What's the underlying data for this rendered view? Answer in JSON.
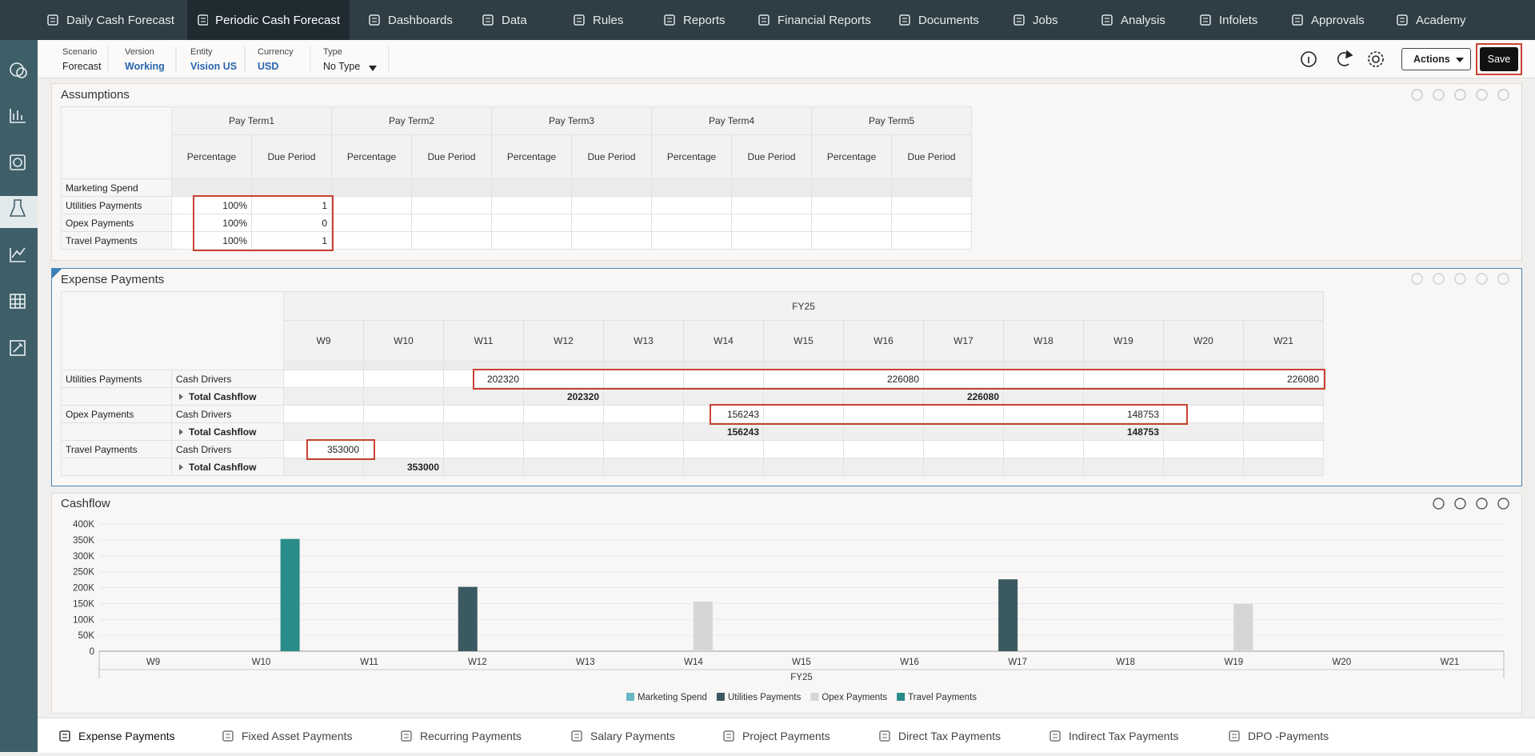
{
  "nav": {
    "tabs": [
      "Daily Cash Forecast",
      "Periodic Cash Forecast",
      "Dashboards",
      "Data",
      "Rules",
      "Reports",
      "Financial Reports",
      "Documents",
      "Jobs",
      "Analysis",
      "Infolets",
      "Approvals",
      "Academy"
    ]
  },
  "pov": [
    {
      "label": "Scenario",
      "value": "Forecast"
    },
    {
      "label": "Version",
      "value": "Working"
    },
    {
      "label": "Entity",
      "value": "Vision US"
    },
    {
      "label": "Currency",
      "value": "USD"
    },
    {
      "label": "Type",
      "value": "No Type"
    }
  ],
  "toolbar": {
    "actions": "Actions",
    "save": "Save"
  },
  "assumptions": {
    "title": "Assumptions",
    "pay_terms": [
      "Pay Term1",
      "Pay Term2",
      "Pay Term3",
      "Pay Term4",
      "Pay Term5"
    ],
    "sub_headers": [
      "Percentage",
      "Due Period"
    ],
    "rows": [
      {
        "label": "Marketing Spend",
        "cells": [
          null,
          null,
          null,
          null,
          null,
          null,
          null,
          null,
          null,
          null
        ]
      },
      {
        "label": "Utilities Payments",
        "cells": [
          "100%",
          1,
          null,
          null,
          null,
          null,
          null,
          null,
          null,
          null
        ]
      },
      {
        "label": "Opex Payments",
        "cells": [
          "100%",
          0,
          null,
          null,
          null,
          null,
          null,
          null,
          null,
          null
        ]
      },
      {
        "label": "Travel Payments",
        "cells": [
          "100%",
          1,
          null,
          null,
          null,
          null,
          null,
          null,
          null,
          null
        ]
      }
    ]
  },
  "expense_payments": {
    "title": "Expense Payments",
    "year": "FY25",
    "weeks": [
      "W9",
      "W10",
      "W11",
      "W12",
      "W13",
      "W14",
      "W15",
      "W16",
      "W17",
      "W18",
      "W19",
      "W20",
      "W21"
    ],
    "rows": [
      {
        "group": "Utilities Payments",
        "label": "Cash Drivers",
        "cells": [
          null,
          null,
          202320,
          null,
          null,
          null,
          null,
          226080,
          null,
          null,
          null,
          null,
          226080
        ]
      },
      {
        "label": "Total Cashflow",
        "cells": [
          null,
          null,
          null,
          202320,
          null,
          null,
          null,
          null,
          226080,
          null,
          null,
          null,
          null
        ]
      },
      {
        "group": "Opex Payments",
        "label": "Cash Drivers",
        "cells": [
          null,
          null,
          null,
          null,
          null,
          156243,
          null,
          null,
          null,
          null,
          148753,
          null,
          null
        ]
      },
      {
        "label": "Total Cashflow",
        "cells": [
          null,
          null,
          null,
          null,
          null,
          156243,
          null,
          null,
          null,
          null,
          148753,
          null,
          null
        ]
      },
      {
        "group": "Travel Payments",
        "label": "Cash Drivers",
        "cells": [
          353000,
          null,
          null,
          null,
          null,
          null,
          null,
          null,
          null,
          null,
          null,
          null,
          null
        ]
      },
      {
        "label": "Total Cashflow",
        "cells": [
          null,
          353000,
          null,
          null,
          null,
          null,
          null,
          null,
          null,
          null,
          null,
          null,
          null
        ]
      }
    ]
  },
  "chart_data": {
    "type": "bar",
    "title": "Cashflow",
    "categories": [
      "W9",
      "W10",
      "W11",
      "W12",
      "W13",
      "W14",
      "W15",
      "W16",
      "W17",
      "W18",
      "W19",
      "W20",
      "W21"
    ],
    "x_group_label": "FY25",
    "series": [
      {
        "name": "Marketing Spend",
        "color": "#6ab7c4",
        "values": [
          null,
          null,
          null,
          null,
          null,
          null,
          null,
          null,
          null,
          null,
          null,
          null,
          null
        ]
      },
      {
        "name": "Utilities Payments",
        "color": "#3b5960",
        "values": [
          null,
          null,
          null,
          202320,
          null,
          null,
          null,
          null,
          226080,
          null,
          null,
          null,
          null
        ]
      },
      {
        "name": "Opex Payments",
        "color": "#d6d6d6",
        "values": [
          null,
          null,
          null,
          null,
          null,
          156243,
          null,
          null,
          null,
          null,
          148753,
          null,
          null
        ]
      },
      {
        "name": "Travel Payments",
        "color": "#2a8c88",
        "values": [
          null,
          353000,
          null,
          null,
          null,
          null,
          null,
          null,
          null,
          null,
          null,
          null,
          null
        ]
      }
    ],
    "ylim": [
      0,
      400000
    ],
    "yticks": [
      0,
      {
        "value": 50000,
        "label": "50K"
      },
      {
        "value": 100000,
        "label": "100K"
      },
      {
        "value": 150000,
        "label": "150K"
      },
      {
        "value": 200000,
        "label": "200K"
      },
      {
        "value": 250000,
        "label": "250K"
      },
      {
        "value": 300000,
        "label": "300K"
      },
      {
        "value": 350000,
        "label": "350K"
      },
      {
        "value": 400000,
        "label": "400K"
      }
    ],
    "grid": true,
    "legend": "bottom"
  },
  "bottom_tabs": [
    "Expense Payments",
    "Fixed Asset Payments",
    "Recurring Payments",
    "Salary Payments",
    "Project Payments",
    "Direct Tax Payments",
    "Indirect Tax Payments",
    "DPO -Payments"
  ]
}
